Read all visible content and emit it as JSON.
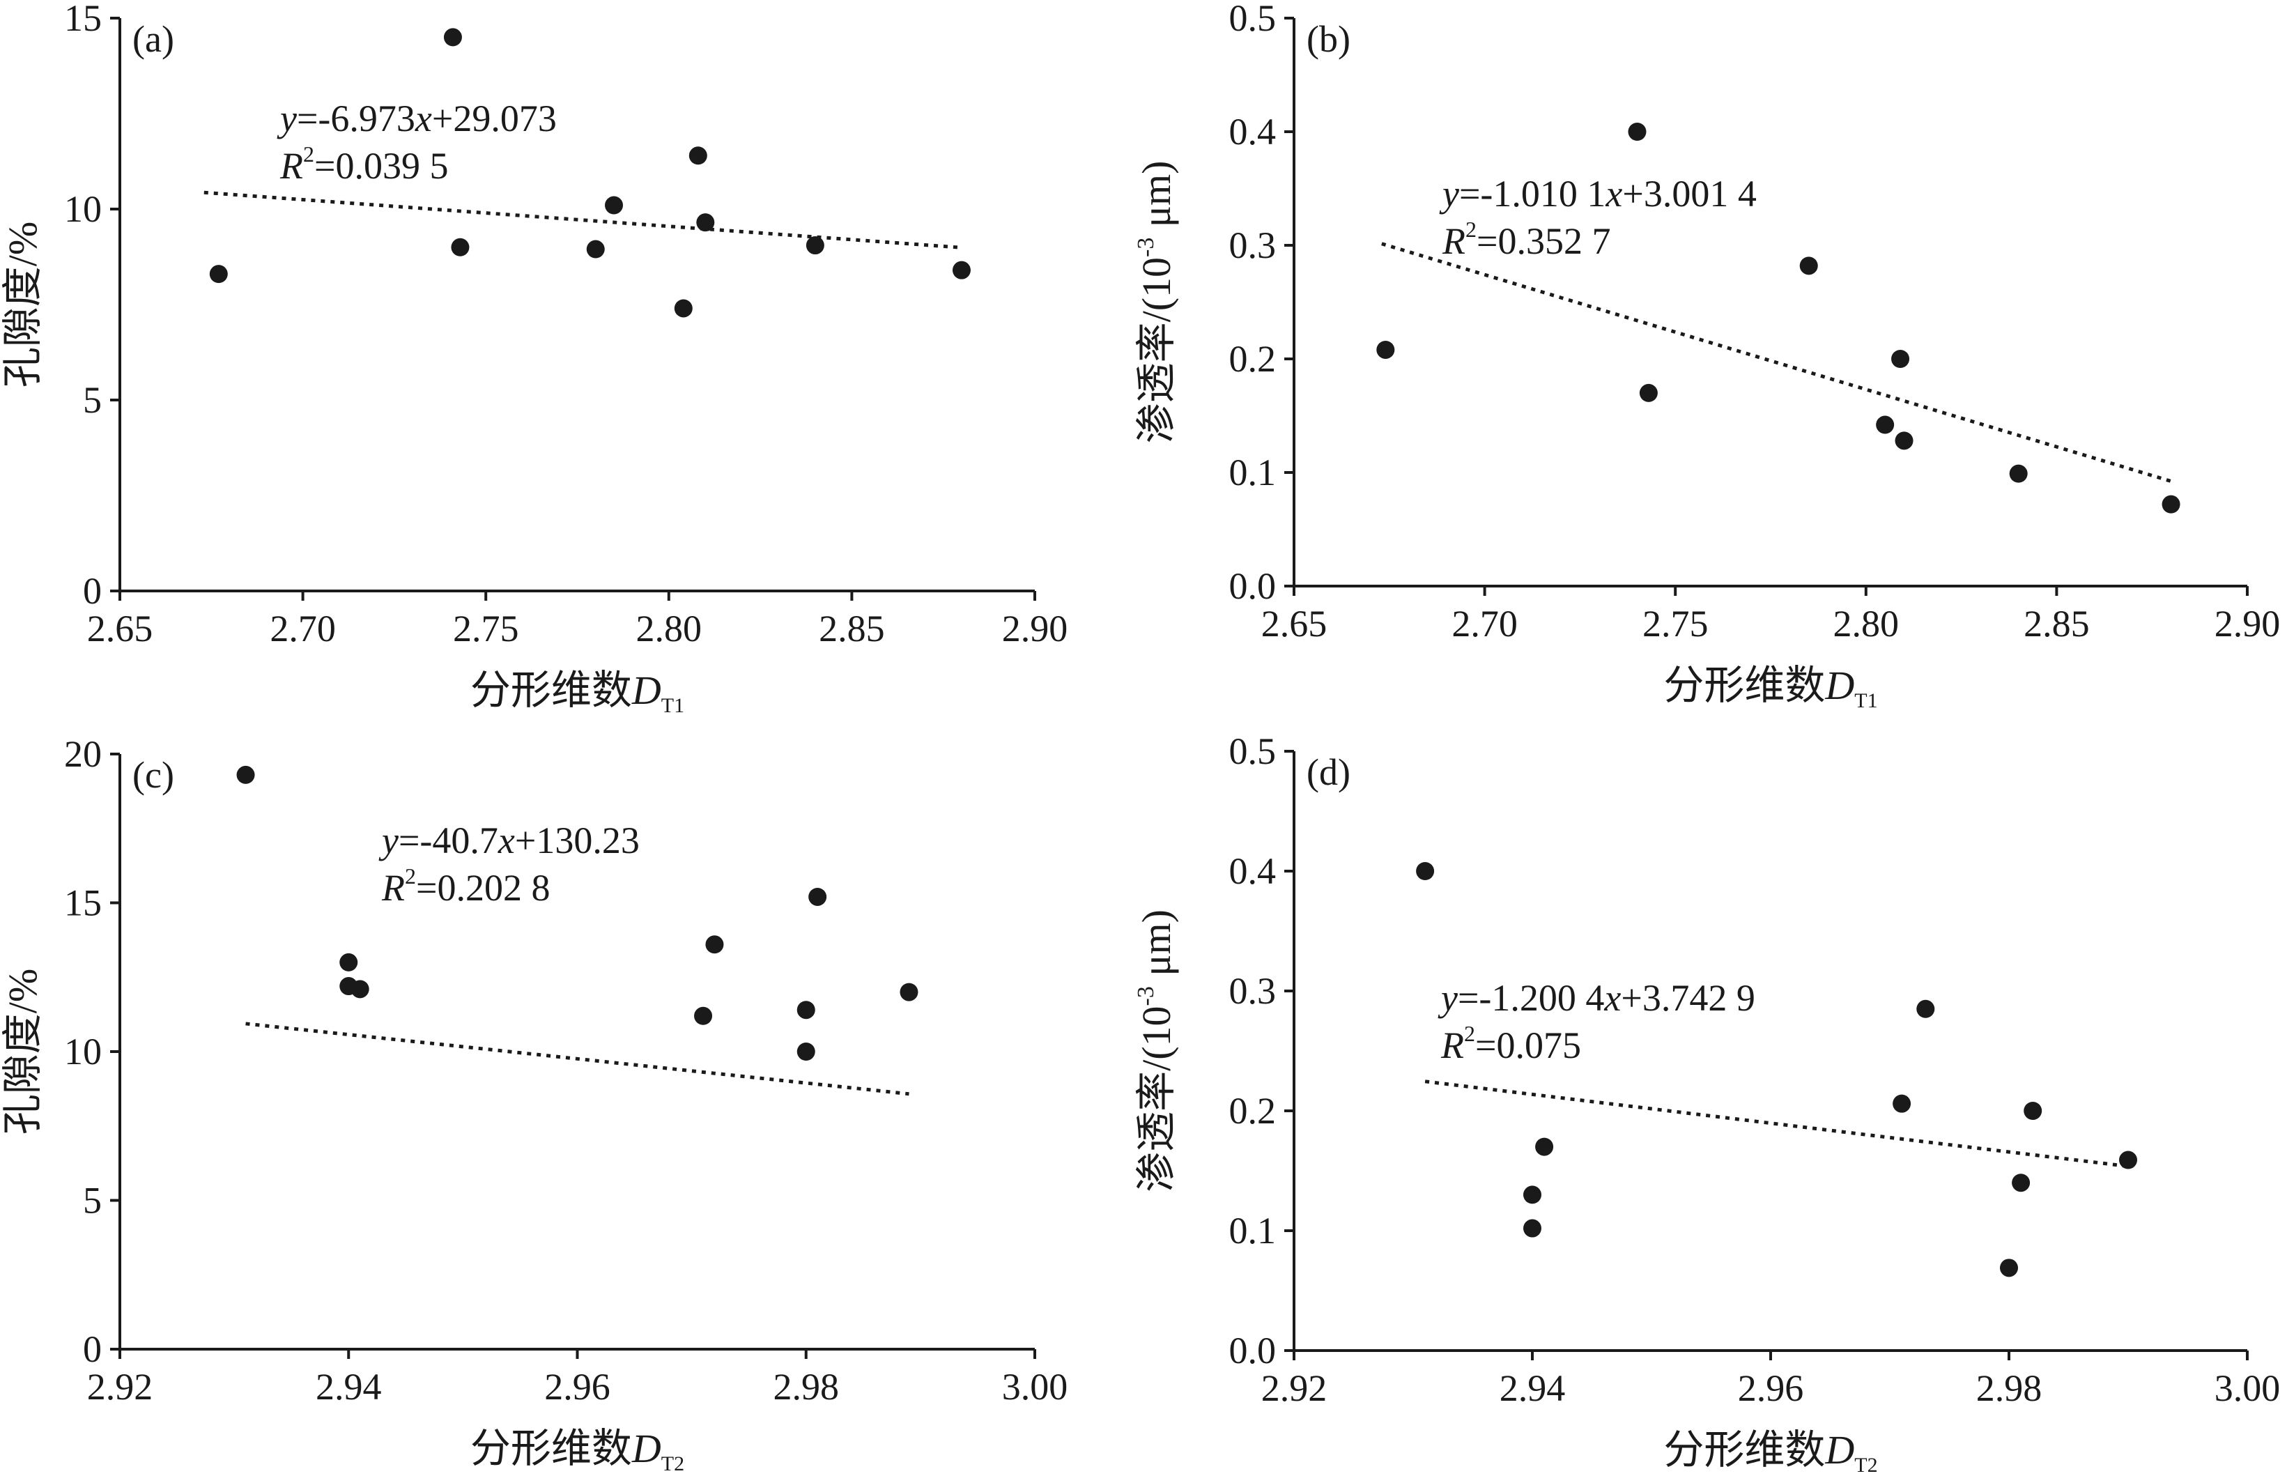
{
  "chart_data": [
    {
      "type": "scatter",
      "panel_label": "(a)",
      "xlabel": "分形维数",
      "xlabel_var": "D",
      "xlabel_sub": "T1",
      "ylabel": "孔隙度/%",
      "xlim": [
        2.65,
        2.9
      ],
      "ylim": [
        0,
        15
      ],
      "xticks": [
        "2.65",
        "2.70",
        "2.75",
        "2.80",
        "2.85",
        "2.90"
      ],
      "yticks": [
        "0",
        "5",
        "10",
        "15"
      ],
      "x": [
        2.677,
        2.741,
        2.743,
        2.78,
        2.785,
        2.804,
        2.808,
        2.81,
        2.84,
        2.88
      ],
      "y": [
        8.3,
        14.5,
        9.0,
        8.95,
        10.1,
        7.4,
        11.4,
        9.65,
        9.05,
        8.4
      ],
      "trendline": {
        "slope": -6.973,
        "intercept": 29.073,
        "x_range": [
          2.673,
          2.88
        ]
      },
      "equation": {
        "y_var": "y",
        "equals_text": "=-6.973",
        "x_var": "x",
        "rest": "+29.073",
        "r_var": "R",
        "r_sup": "2",
        "r_text": "=0.039 5"
      }
    },
    {
      "type": "scatter",
      "panel_label": "(b)",
      "xlabel": "分形维数",
      "xlabel_var": "D",
      "xlabel_sub": "T1",
      "ylabel_main": "渗透率/(10",
      "ylabel_sup": "-3",
      "ylabel_end": " μm)",
      "xlim": [
        2.65,
        2.9
      ],
      "ylim": [
        0,
        0.5
      ],
      "xticks": [
        "2.65",
        "2.70",
        "2.75",
        "2.80",
        "2.85",
        "2.90"
      ],
      "yticks": [
        "0.0",
        "0.1",
        "0.2",
        "0.3",
        "0.4",
        "0.5"
      ],
      "x": [
        2.674,
        2.74,
        2.743,
        2.785,
        2.805,
        2.809,
        2.81,
        2.84,
        2.88
      ],
      "y": [
        0.208,
        0.4,
        0.17,
        0.282,
        0.142,
        0.2,
        0.128,
        0.099,
        0.072
      ],
      "trendline": {
        "slope": -1.0101,
        "intercept": 3.0014,
        "x_range": [
          2.673,
          2.88
        ]
      },
      "equation": {
        "y_var": "y",
        "equals_text": "=-1.010 1",
        "x_var": "x",
        "rest": "+3.001 4",
        "r_var": "R",
        "r_sup": "2",
        "r_text": "=0.352 7"
      }
    },
    {
      "type": "scatter",
      "panel_label": "(c)",
      "xlabel": "分形维数",
      "xlabel_var": "D",
      "xlabel_sub": "T2",
      "ylabel": "孔隙度/%",
      "xlim": [
        2.92,
        3.0
      ],
      "ylim": [
        0,
        20
      ],
      "xticks": [
        "2.92",
        "2.94",
        "2.96",
        "2.98",
        "3.00"
      ],
      "yticks": [
        "0",
        "5",
        "10",
        "15",
        "20"
      ],
      "x": [
        2.931,
        2.94,
        2.94,
        2.941,
        2.971,
        2.972,
        2.98,
        2.98,
        2.981,
        2.989
      ],
      "y": [
        19.3,
        13.0,
        12.2,
        12.1,
        11.2,
        13.6,
        11.4,
        10.0,
        15.2,
        12.0
      ],
      "trendline": {
        "slope": -40.7,
        "intercept": 130.23,
        "x_range": [
          2.931,
          2.989
        ]
      },
      "equation": {
        "y_var": "y",
        "equals_text": "=-40.7",
        "x_var": "x",
        "rest": "+130.23",
        "r_var": "R",
        "r_sup": "2",
        "r_text": "=0.202 8"
      }
    },
    {
      "type": "scatter",
      "panel_label": "(d)",
      "xlabel": "分形维数",
      "xlabel_var": "D",
      "xlabel_sub": "T2",
      "ylabel_main": "渗透率/(10",
      "ylabel_sup": "-3",
      "ylabel_end": " μm)",
      "xlim": [
        2.92,
        3.0
      ],
      "ylim": [
        0,
        0.5
      ],
      "xticks": [
        "2.92",
        "2.94",
        "2.96",
        "2.98",
        "3.00"
      ],
      "yticks": [
        "0.0",
        "0.1",
        "0.2",
        "0.3",
        "0.4",
        "0.5"
      ],
      "x": [
        2.931,
        2.94,
        2.94,
        2.941,
        2.971,
        2.973,
        2.98,
        2.981,
        2.982,
        2.99
      ],
      "y": [
        0.4,
        0.13,
        0.102,
        0.17,
        0.206,
        0.285,
        0.069,
        0.14,
        0.2,
        0.159
      ],
      "trendline": {
        "slope": -1.2004,
        "intercept": 3.7429,
        "x_range": [
          2.931,
          2.99
        ]
      },
      "equation": {
        "y_var": "y",
        "equals_text": "=-1.200 4",
        "x_var": "x",
        "rest": "+3.742 9",
        "r_var": "R",
        "r_sup": "2",
        "r_text": "=0.075"
      }
    }
  ]
}
